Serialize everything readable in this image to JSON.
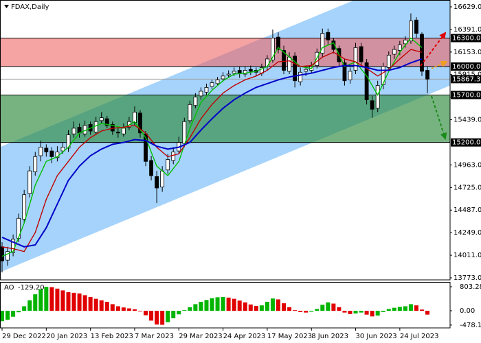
{
  "chart_data": [
    {
      "type": "candlestick",
      "title": "FDAX,Daily",
      "x": [
        0,
        2,
        4,
        6,
        8,
        10,
        12,
        14,
        16,
        18,
        20,
        22,
        24,
        26,
        28,
        30,
        32,
        34,
        36,
        38,
        40,
        42,
        44,
        46,
        48,
        50,
        52,
        54,
        56,
        58,
        60,
        62,
        64,
        66,
        68,
        70,
        72,
        74,
        76,
        78,
        80,
        82,
        84,
        86,
        88,
        90,
        92,
        94,
        96,
        98,
        100,
        102,
        104,
        106,
        108,
        110,
        112,
        114,
        116,
        118,
        120,
        122,
        124,
        126,
        128,
        130,
        132,
        134,
        136,
        138,
        140,
        142,
        144,
        146,
        148,
        150,
        152,
        154
      ],
      "open": [
        14100,
        13960,
        14040,
        14190,
        14390,
        14660,
        14890,
        15060,
        15140,
        15110,
        15040,
        15110,
        15140,
        15290,
        15360,
        15290,
        15390,
        15310,
        15430,
        15450,
        15390,
        15310,
        15290,
        15360,
        15410,
        15510,
        15290,
        15010,
        14840,
        14730,
        14910,
        15010,
        15110,
        15190,
        15430,
        15590,
        15690,
        15730,
        15790,
        15820,
        15870,
        15910,
        15930,
        15960,
        15920,
        15970,
        15960,
        15930,
        16000,
        16070,
        16310,
        16170,
        15950,
        16110,
        15840,
        15950,
        15960,
        16010,
        16140,
        16360,
        16270,
        16190,
        16040,
        15860,
        15960,
        16210,
        16040,
        15640,
        15560,
        15810,
        15990,
        16130,
        16170,
        16240,
        16270,
        16490,
        16340,
        15960
      ],
      "high": [
        14150,
        14100,
        14230,
        14450,
        14700,
        14950,
        15100,
        15220,
        15180,
        15150,
        15160,
        15200,
        15330,
        15420,
        15400,
        15430,
        15420,
        15470,
        15520,
        15480,
        15420,
        15360,
        15400,
        15470,
        15580,
        15540,
        15320,
        15060,
        14900,
        14950,
        15080,
        15150,
        15260,
        15460,
        15640,
        15720,
        15780,
        15820,
        15860,
        15890,
        15940,
        15960,
        15990,
        16000,
        16000,
        16010,
        15990,
        16030,
        16120,
        16390,
        16360,
        16220,
        16150,
        16150,
        15990,
        16010,
        16050,
        16190,
        16400,
        16400,
        16300,
        16220,
        16080,
        15990,
        16250,
        16250,
        16080,
        15690,
        15850,
        16040,
        16160,
        16220,
        16270,
        16320,
        16560,
        16520,
        16360,
        16000
      ],
      "low": [
        13830,
        13900,
        14000,
        14150,
        14350,
        14620,
        14850,
        15000,
        15050,
        14980,
        15000,
        15080,
        15100,
        15250,
        15250,
        15260,
        15280,
        15280,
        15400,
        15350,
        15280,
        15250,
        15260,
        15330,
        15380,
        15250,
        14950,
        14800,
        14560,
        14680,
        14870,
        14970,
        15080,
        15150,
        15400,
        15560,
        15650,
        15700,
        15760,
        15800,
        15840,
        15880,
        15900,
        15880,
        15890,
        15910,
        15900,
        15900,
        15960,
        16040,
        16140,
        15920,
        15920,
        15780,
        15800,
        15900,
        15930,
        15980,
        16100,
        16230,
        16140,
        16000,
        15800,
        15820,
        15920,
        16000,
        15600,
        15460,
        15520,
        15760,
        15950,
        16080,
        16120,
        16200,
        16240,
        16300,
        15900,
        15720
      ],
      "close": [
        13950,
        14050,
        14180,
        14400,
        14650,
        14900,
        15050,
        15150,
        15100,
        15050,
        15100,
        15150,
        15280,
        15350,
        15300,
        15380,
        15320,
        15420,
        15460,
        15380,
        15320,
        15300,
        15350,
        15420,
        15520,
        15300,
        15000,
        14850,
        14720,
        14900,
        15020,
        15100,
        15200,
        15420,
        15600,
        15680,
        15740,
        15780,
        15830,
        15860,
        15900,
        15920,
        15950,
        15930,
        15960,
        15950,
        15940,
        15990,
        16080,
        16300,
        16180,
        15960,
        16100,
        15850,
        15940,
        15970,
        16000,
        16150,
        16350,
        16280,
        16180,
        16050,
        15850,
        15950,
        16200,
        16050,
        15650,
        15550,
        15800,
        16000,
        16120,
        16180,
        16230,
        16280,
        16480,
        16350,
        15950,
        15867.3
      ],
      "up_color": "#ffffff",
      "down_color": "#000000",
      "series": [
        {
          "color": "#00c000",
          "x": [
            0,
            4,
            8,
            12,
            16,
            20,
            24,
            28,
            32,
            36,
            40,
            44,
            48,
            52,
            56,
            60,
            64,
            68,
            72,
            76,
            80,
            84,
            88,
            92,
            96,
            100,
            104,
            108,
            112,
            116,
            120,
            124,
            128,
            132,
            136,
            140,
            144,
            148,
            152
          ],
          "values": [
            14000,
            14050,
            14350,
            14750,
            15000,
            15050,
            15150,
            15300,
            15350,
            15400,
            15380,
            15350,
            15420,
            15250,
            14950,
            14850,
            15000,
            15350,
            15620,
            15750,
            15850,
            15920,
            15930,
            15950,
            16000,
            16200,
            16100,
            16000,
            15980,
            16200,
            16250,
            16000,
            16050,
            15900,
            15700,
            15950,
            16150,
            16300,
            16200
          ]
        },
        {
          "color": "#c00000",
          "x": [
            0,
            4,
            8,
            12,
            16,
            20,
            24,
            28,
            32,
            36,
            40,
            44,
            48,
            52,
            56,
            60,
            64,
            68,
            72,
            76,
            80,
            84,
            88,
            92,
            96,
            100,
            104,
            108,
            112,
            116,
            120,
            124,
            128,
            132,
            136,
            140,
            144,
            148,
            152
          ],
          "values": [
            14100,
            14080,
            14050,
            14250,
            14600,
            14850,
            15000,
            15150,
            15250,
            15320,
            15350,
            15360,
            15380,
            15300,
            15150,
            15050,
            15080,
            15250,
            15450,
            15600,
            15720,
            15800,
            15860,
            15900,
            15960,
            16050,
            16060,
            16000,
            16010,
            16100,
            16150,
            16080,
            16050,
            15980,
            15900,
            15970,
            16080,
            16180,
            16150
          ]
        },
        {
          "color": "#0000c8",
          "x": [
            0,
            4,
            8,
            12,
            16,
            20,
            24,
            28,
            32,
            36,
            40,
            44,
            48,
            52,
            56,
            60,
            64,
            68,
            72,
            76,
            80,
            84,
            88,
            92,
            96,
            100,
            104,
            108,
            112,
            116,
            120,
            124,
            128,
            132,
            136,
            140,
            144,
            148,
            152
          ],
          "values": [
            14200,
            14150,
            14100,
            14120,
            14300,
            14550,
            14800,
            14950,
            15060,
            15130,
            15180,
            15200,
            15230,
            15220,
            15160,
            15130,
            15150,
            15200,
            15330,
            15450,
            15560,
            15650,
            15720,
            15780,
            15820,
            15860,
            15890,
            15910,
            15930,
            15960,
            15990,
            16010,
            16010,
            15990,
            15960,
            15960,
            15990,
            16040,
            16080
          ]
        }
      ],
      "channel": {
        "x": [
          -0.75,
          162.2
        ],
        "lower": [
          13832,
          15800
        ],
        "upper": [
          15151,
          17119
        ],
        "color": "#a5d3fb"
      },
      "zones": [
        {
          "from": 16000,
          "to": 16300,
          "color": "rgba(238,102,102,0.6)"
        },
        {
          "from": 15200,
          "to": 15700,
          "color": "rgba(46,139,62,0.65)"
        }
      ],
      "levels": [
        {
          "value": 16300,
          "label": "16300.0"
        },
        {
          "value": 16000,
          "label": "16000.0"
        },
        {
          "value": 15700,
          "label": "15700.0"
        },
        {
          "value": 15200,
          "label": "15200.0"
        }
      ],
      "current_price": {
        "value": 15867.3,
        "label": "15867.3"
      },
      "xlim": [
        -0.75,
        162.2
      ],
      "xticks": [
        {
          "value": 0,
          "label": "29 Dec 2022"
        },
        {
          "value": 16,
          "label": "20 Jan 2023"
        },
        {
          "value": 32,
          "label": "13 Feb 2023"
        },
        {
          "value": 48,
          "label": "7 Mar 2023"
        },
        {
          "value": 64,
          "label": "29 Mar 2023"
        },
        {
          "value": 80,
          "label": "24 Apr 2023"
        },
        {
          "value": 96,
          "label": "17 May 2023"
        },
        {
          "value": 112,
          "label": "8 Jun 2023"
        },
        {
          "value": 128,
          "label": "30 Jun 2023"
        },
        {
          "value": 144,
          "label": "24 Jul 2023"
        }
      ],
      "ylim": [
        13751.3,
        16701.3
      ],
      "yticks": [
        {
          "value": 16629,
          "label": "16629.0"
        },
        {
          "value": 16391,
          "label": "16391.0"
        },
        {
          "value": 16153,
          "label": "16153.0"
        },
        {
          "value": 15915,
          "label": "15915.0"
        },
        {
          "value": 15677,
          "label": "15677.0"
        },
        {
          "value": 15439,
          "label": "15439.0"
        },
        {
          "value": 14963,
          "label": "14963.0"
        },
        {
          "value": 14725,
          "label": "14725.0"
        },
        {
          "value": 14487,
          "label": "14487.0"
        },
        {
          "value": 14249,
          "label": "14249.0"
        },
        {
          "value": 14011,
          "label": "14011.0"
        },
        {
          "value": 13773,
          "label": "13773.0"
        }
      ]
    },
    {
      "type": "bar",
      "name": "AO",
      "value_label": "-129.20",
      "x": [
        0,
        2,
        4,
        6,
        8,
        10,
        12,
        14,
        16,
        18,
        20,
        22,
        24,
        26,
        28,
        30,
        32,
        34,
        36,
        38,
        40,
        42,
        44,
        46,
        48,
        50,
        52,
        54,
        56,
        58,
        60,
        62,
        64,
        66,
        68,
        70,
        72,
        74,
        76,
        78,
        80,
        82,
        84,
        86,
        88,
        90,
        92,
        94,
        96,
        98,
        100,
        102,
        104,
        106,
        108,
        110,
        112,
        114,
        116,
        118,
        120,
        122,
        124,
        126,
        128,
        130,
        132,
        134,
        136,
        138,
        140,
        142,
        144,
        146,
        148,
        150,
        152,
        154
      ],
      "values": [
        -350,
        -300,
        -200,
        -50,
        150,
        350,
        550,
        720,
        800,
        790,
        740,
        680,
        620,
        600,
        580,
        520,
        460,
        400,
        350,
        300,
        220,
        150,
        110,
        80,
        50,
        -20,
        -150,
        -330,
        -460,
        -470,
        -380,
        -250,
        -120,
        20,
        120,
        220,
        300,
        360,
        420,
        450,
        460,
        440,
        400,
        340,
        280,
        210,
        160,
        180,
        300,
        410,
        380,
        250,
        120,
        20,
        -40,
        -60,
        -30,
        60,
        200,
        280,
        240,
        120,
        -60,
        -110,
        -90,
        -60,
        -130,
        -190,
        -160,
        -40,
        60,
        100,
        130,
        150,
        220,
        180,
        40,
        -129.2
      ],
      "up_color": "#00b400",
      "down_color": "#e00000",
      "xlim": [
        -0.75,
        162.2
      ],
      "ylim": [
        -573.8,
        963.9
      ],
      "yticks": [
        803.28,
        {
          "value": 0,
          "label": "0.00"
        },
        -478.14
      ]
    }
  ]
}
